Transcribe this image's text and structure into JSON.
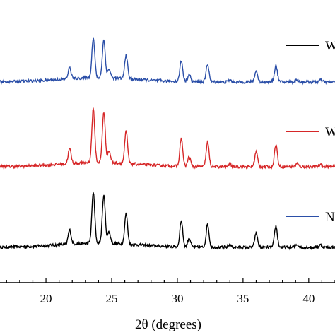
{
  "chart_data": {
    "type": "line",
    "xlabel": "2θ (degrees)",
    "xlim": [
      16.5,
      42
    ],
    "x_ticks": [
      20,
      25,
      30,
      35,
      40
    ],
    "ylabel": "",
    "y_ticks_shown": false,
    "legend": "right",
    "peaks": [
      {
        "x": 21.8,
        "rel": 0.28
      },
      {
        "x": 23.6,
        "rel": 1.0
      },
      {
        "x": 24.4,
        "rel": 0.95
      },
      {
        "x": 24.8,
        "rel": 0.22
      },
      {
        "x": 26.1,
        "rel": 0.6
      },
      {
        "x": 30.3,
        "rel": 0.52
      },
      {
        "x": 30.9,
        "rel": 0.18
      },
      {
        "x": 32.3,
        "rel": 0.45
      },
      {
        "x": 34.0,
        "rel": 0.05
      },
      {
        "x": 36.0,
        "rel": 0.28
      },
      {
        "x": 37.5,
        "rel": 0.42
      },
      {
        "x": 39.1,
        "rel": 0.06
      },
      {
        "x": 40.9,
        "rel": 0.05
      }
    ],
    "series": [
      {
        "name": "W",
        "color": "#000000",
        "offset": 2,
        "peak_scale": 1.0
      },
      {
        "name": "W",
        "color": "#d62728",
        "offset": 1,
        "peak_scale": 1.05
      },
      {
        "name": "N",
        "color": "#2b4fa8",
        "offset": 0,
        "peak_scale": 0.78
      }
    ]
  }
}
